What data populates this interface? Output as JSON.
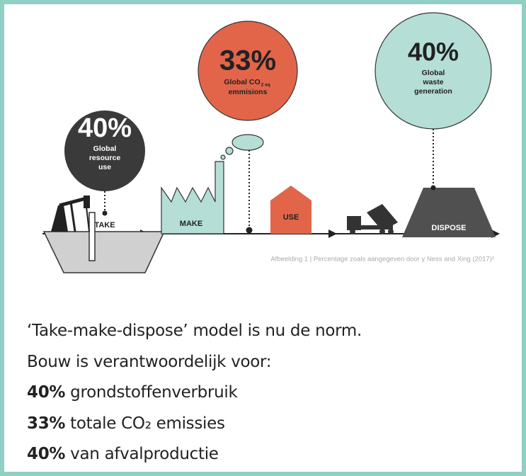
{
  "circles": [
    {
      "value": "40%",
      "label_lines": [
        "Global",
        "resource",
        "use"
      ]
    },
    {
      "value": "33%",
      "label_lines": [
        "Global CO",
        "emmisions"
      ],
      "subscript": "2 eq"
    },
    {
      "value": "40%",
      "label_lines": [
        "Global",
        "waste",
        "generation"
      ]
    }
  ],
  "stages": [
    "TAKE",
    "MAKE",
    "USE",
    "DISPOSE"
  ],
  "caption": "Afbeelding 1 | Percentage zoals aangegeven door y Ness and Xing (2017)²",
  "text": {
    "intro": [
      "‘Take-make-dispose’ model is nu de norm.",
      "Bouw is verantwoordelijk voor:"
    ],
    "items": [
      {
        "value": "40%",
        "label": "grondstoffenverbruik"
      },
      {
        "value": "33%",
        "label": "totale CO₂ emissies"
      },
      {
        "value": "40%",
        "label": "van afvalproductie"
      }
    ]
  }
}
